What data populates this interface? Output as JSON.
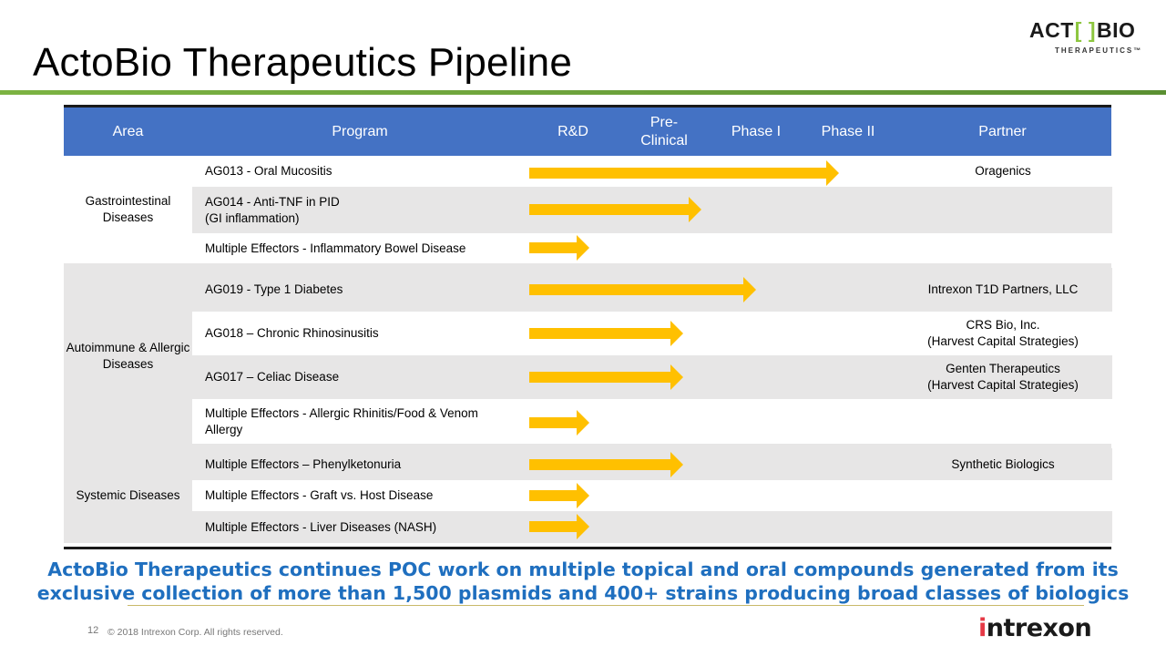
{
  "title": "ActoBio Therapeutics Pipeline",
  "logo": {
    "main_left": "ACT",
    "bracket": "[ ]",
    "main_right": "BIO",
    "sub": "THERAPEUTICS™"
  },
  "headers": [
    "Area",
    "Program",
    "R&D",
    "Pre-\nClinical",
    "Phase I",
    "Phase II",
    "Partner"
  ],
  "groups": [
    {
      "area": "Gastrointestinal Diseases",
      "rows": [
        {
          "program": "AG013 - Oral Mucositis",
          "partner": "Oragenics",
          "stage": "Phase II"
        },
        {
          "program": "AG014 - Anti-TNF in PID\n(GI inflammation)",
          "partner": "",
          "stage": "Pre-Clinical"
        },
        {
          "program": "Multiple Effectors  - Inflammatory Bowel Disease",
          "partner": "",
          "stage": "R&D"
        }
      ]
    },
    {
      "area": "Autoimmune & Allergic Diseases",
      "rows": [
        {
          "program": "AG019 - Type 1 Diabetes",
          "partner": "Intrexon T1D Partners, LLC",
          "stage": "Phase I"
        },
        {
          "program": "AG018 – Chronic Rhinosinusitis",
          "partner": "CRS Bio, Inc.\n(Harvest Capital Strategies)",
          "stage": "Pre-Clinical"
        },
        {
          "program": "AG017 – Celiac Disease",
          "partner": "Genten Therapeutics\n(Harvest Capital Strategies)",
          "stage": "Pre-Clinical"
        },
        {
          "program": "Multiple Effectors - Allergic Rhinitis/Food & Venom Allergy",
          "partner": "",
          "stage": "R&D"
        }
      ]
    },
    {
      "area": "Systemic Diseases",
      "rows": [
        {
          "program": "Multiple Effectors – Phenylketonuria",
          "partner": "Synthetic Biologics",
          "stage": "Pre-Clinical"
        },
        {
          "program": "Multiple Effectors  - Graft vs. Host Disease",
          "partner": "",
          "stage": "R&D"
        },
        {
          "program": "Multiple Effectors  - Liver Diseases (NASH)",
          "partner": "",
          "stage": "R&D"
        }
      ]
    }
  ],
  "tagline": "ActoBio Therapeutics continues POC work on multiple topical and oral compounds generated from its exclusive collection of more than 1,500 plasmids and 400+ strains producing broad classes of biologics",
  "footer": {
    "page_number": "12",
    "copyright": "© 2018 Intrexon Corp. All rights reserved.",
    "brand": "intrexon"
  },
  "colors": {
    "header_bg": "#4472c4",
    "arrow": "#ffc000",
    "tagline": "#1f6fbf",
    "accent_green": "#7cb342"
  }
}
